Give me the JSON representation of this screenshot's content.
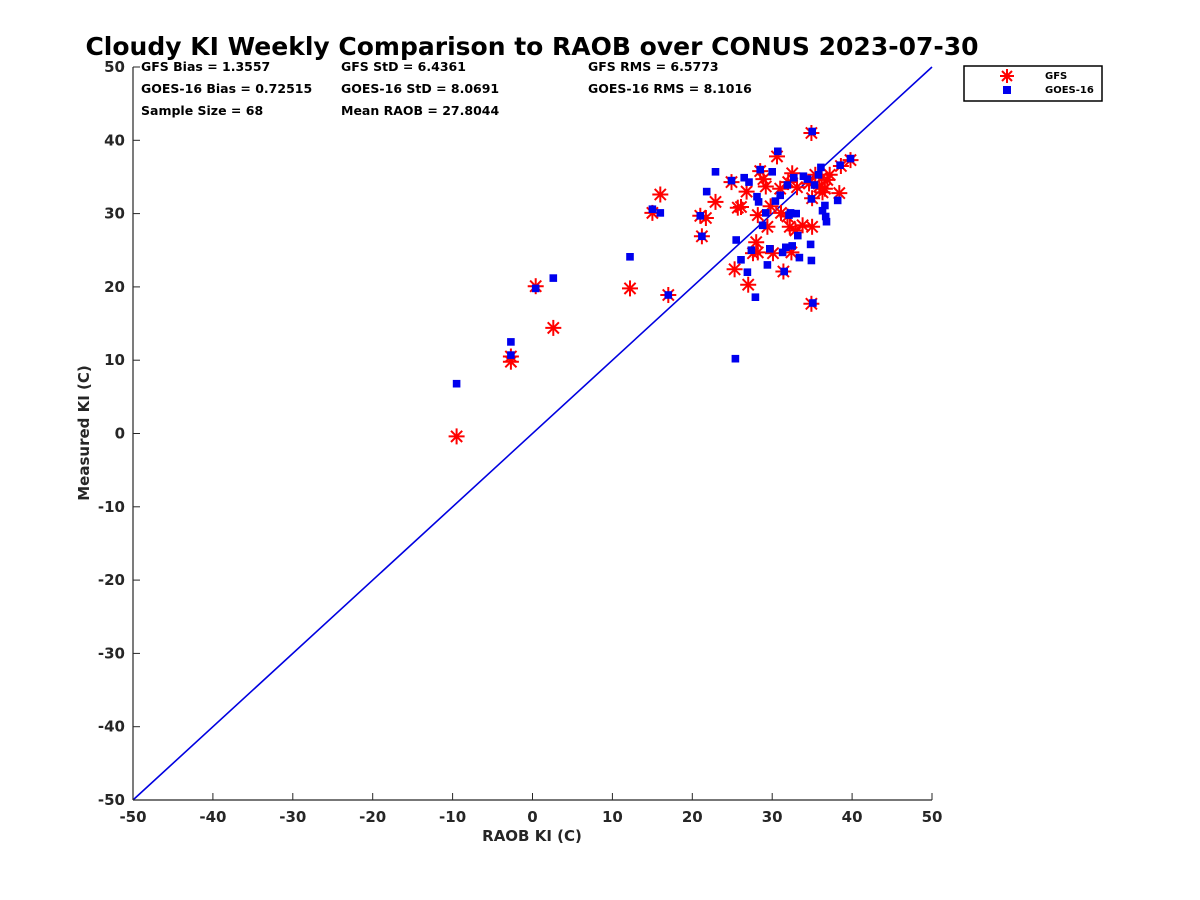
{
  "chart_data": {
    "type": "scatter",
    "title": "Cloudy KI Weekly Comparison to RAOB over CONUS 2023-07-30",
    "xlabel": "RAOB KI (C)",
    "ylabel": "Measured KI (C)",
    "xlim": [
      -50,
      50
    ],
    "ylim": [
      -50,
      50
    ],
    "xticks": [
      -50,
      -40,
      -30,
      -20,
      -10,
      0,
      10,
      20,
      30,
      40,
      50
    ],
    "yticks": [
      -50,
      -40,
      -30,
      -20,
      -10,
      0,
      10,
      20,
      30,
      40,
      50
    ],
    "reference_line": {
      "name": "1:1",
      "from": [
        -50,
        -50
      ],
      "to": [
        50,
        50
      ],
      "color": "#0000e0"
    },
    "stats": {
      "gfs_bias": "GFS Bias = 1.3557",
      "goes_bias": "GOES-16 Bias = 0.72515",
      "sample_size": "Sample Size = 68",
      "gfs_std": "GFS StD = 6.4361",
      "goes_std": "GOES-16 StD = 8.0691",
      "mean_raob": "Mean RAOB = 27.8044",
      "gfs_rms": "GFS RMS = 6.5773",
      "goes_rms": "GOES-16 RMS = 8.1016"
    },
    "legend": {
      "placement": "outside-top-right",
      "entries": [
        "GFS",
        "GOES-16"
      ]
    },
    "series": [
      {
        "name": "GFS",
        "marker": "asterisk",
        "color": "#ff0000",
        "points": [
          [
            -9.5,
            -0.4
          ],
          [
            -2.7,
            10.5
          ],
          [
            -2.7,
            9.8
          ],
          [
            0.4,
            20.1
          ],
          [
            2.6,
            14.4
          ],
          [
            12.2,
            19.8
          ],
          [
            15.0,
            30.1
          ],
          [
            16.0,
            32.6
          ],
          [
            17.0,
            18.9
          ],
          [
            21.0,
            29.7
          ],
          [
            21.2,
            26.9
          ],
          [
            21.7,
            29.4
          ],
          [
            22.9,
            31.6
          ],
          [
            24.9,
            34.3
          ],
          [
            25.3,
            22.4
          ],
          [
            25.7,
            30.8
          ],
          [
            26.1,
            30.9
          ],
          [
            26.8,
            33.0
          ],
          [
            27.0,
            20.3
          ],
          [
            27.6,
            24.6
          ],
          [
            28.0,
            26.1
          ],
          [
            28.2,
            24.7
          ],
          [
            28.2,
            29.8
          ],
          [
            28.5,
            35.8
          ],
          [
            28.9,
            34.7
          ],
          [
            29.2,
            33.7
          ],
          [
            29.4,
            28.2
          ],
          [
            29.8,
            31.0
          ],
          [
            30.1,
            24.6
          ],
          [
            30.6,
            37.8
          ],
          [
            31.0,
            33.4
          ],
          [
            31.1,
            30.1
          ],
          [
            31.4,
            22.1
          ],
          [
            31.9,
            29.6
          ],
          [
            32.0,
            34.3
          ],
          [
            32.2,
            28.2
          ],
          [
            32.4,
            24.7
          ],
          [
            32.5,
            35.5
          ],
          [
            32.9,
            27.7
          ],
          [
            33.1,
            33.6
          ],
          [
            33.8,
            28.4
          ],
          [
            34.6,
            34.1
          ],
          [
            34.9,
            41.0
          ],
          [
            34.9,
            17.7
          ],
          [
            35.0,
            28.2
          ],
          [
            35.0,
            32.1
          ],
          [
            35.4,
            35.3
          ],
          [
            35.9,
            33.7
          ],
          [
            36.2,
            34.9
          ],
          [
            36.3,
            32.9
          ],
          [
            36.6,
            33.4
          ],
          [
            36.9,
            34.6
          ],
          [
            37.2,
            35.3
          ],
          [
            38.4,
            32.8
          ],
          [
            38.6,
            36.5
          ],
          [
            39.8,
            37.3
          ]
        ]
      },
      {
        "name": "GOES-16",
        "marker": "square",
        "color": "#0000ee",
        "points": [
          [
            -9.5,
            6.8
          ],
          [
            -2.7,
            12.5
          ],
          [
            -2.7,
            10.7
          ],
          [
            0.4,
            19.8
          ],
          [
            2.6,
            21.2
          ],
          [
            12.2,
            24.1
          ],
          [
            15.0,
            30.6
          ],
          [
            16.0,
            30.1
          ],
          [
            17.0,
            18.9
          ],
          [
            21.0,
            29.7
          ],
          [
            21.2,
            26.9
          ],
          [
            21.8,
            33.0
          ],
          [
            22.9,
            35.7
          ],
          [
            24.9,
            34.5
          ],
          [
            25.4,
            10.2
          ],
          [
            25.5,
            26.4
          ],
          [
            26.1,
            23.7
          ],
          [
            26.5,
            34.9
          ],
          [
            26.9,
            22.0
          ],
          [
            27.1,
            34.3
          ],
          [
            27.4,
            25.0
          ],
          [
            27.9,
            18.6
          ],
          [
            28.1,
            32.3
          ],
          [
            28.3,
            31.6
          ],
          [
            28.5,
            36.0
          ],
          [
            28.8,
            28.4
          ],
          [
            29.2,
            30.1
          ],
          [
            29.4,
            23.0
          ],
          [
            29.7,
            25.2
          ],
          [
            30.0,
            35.7
          ],
          [
            30.4,
            31.7
          ],
          [
            30.7,
            38.5
          ],
          [
            31.0,
            32.5
          ],
          [
            31.3,
            24.7
          ],
          [
            31.5,
            22.1
          ],
          [
            31.7,
            25.4
          ],
          [
            31.9,
            33.9
          ],
          [
            32.1,
            29.8
          ],
          [
            32.3,
            30.1
          ],
          [
            32.5,
            25.6
          ],
          [
            32.7,
            34.9
          ],
          [
            33.0,
            30.0
          ],
          [
            33.2,
            27.0
          ],
          [
            33.4,
            24.0
          ],
          [
            33.9,
            35.1
          ],
          [
            34.4,
            34.7
          ],
          [
            34.8,
            25.8
          ],
          [
            34.9,
            23.6
          ],
          [
            34.9,
            32.0
          ],
          [
            35.0,
            41.2
          ],
          [
            35.1,
            17.8
          ],
          [
            35.3,
            33.9
          ],
          [
            35.8,
            35.3
          ],
          [
            36.1,
            36.3
          ],
          [
            36.3,
            30.4
          ],
          [
            36.6,
            31.1
          ],
          [
            36.7,
            29.6
          ],
          [
            36.8,
            28.9
          ],
          [
            38.2,
            31.8
          ],
          [
            38.5,
            36.6
          ],
          [
            39.8,
            37.5
          ]
        ]
      }
    ]
  }
}
